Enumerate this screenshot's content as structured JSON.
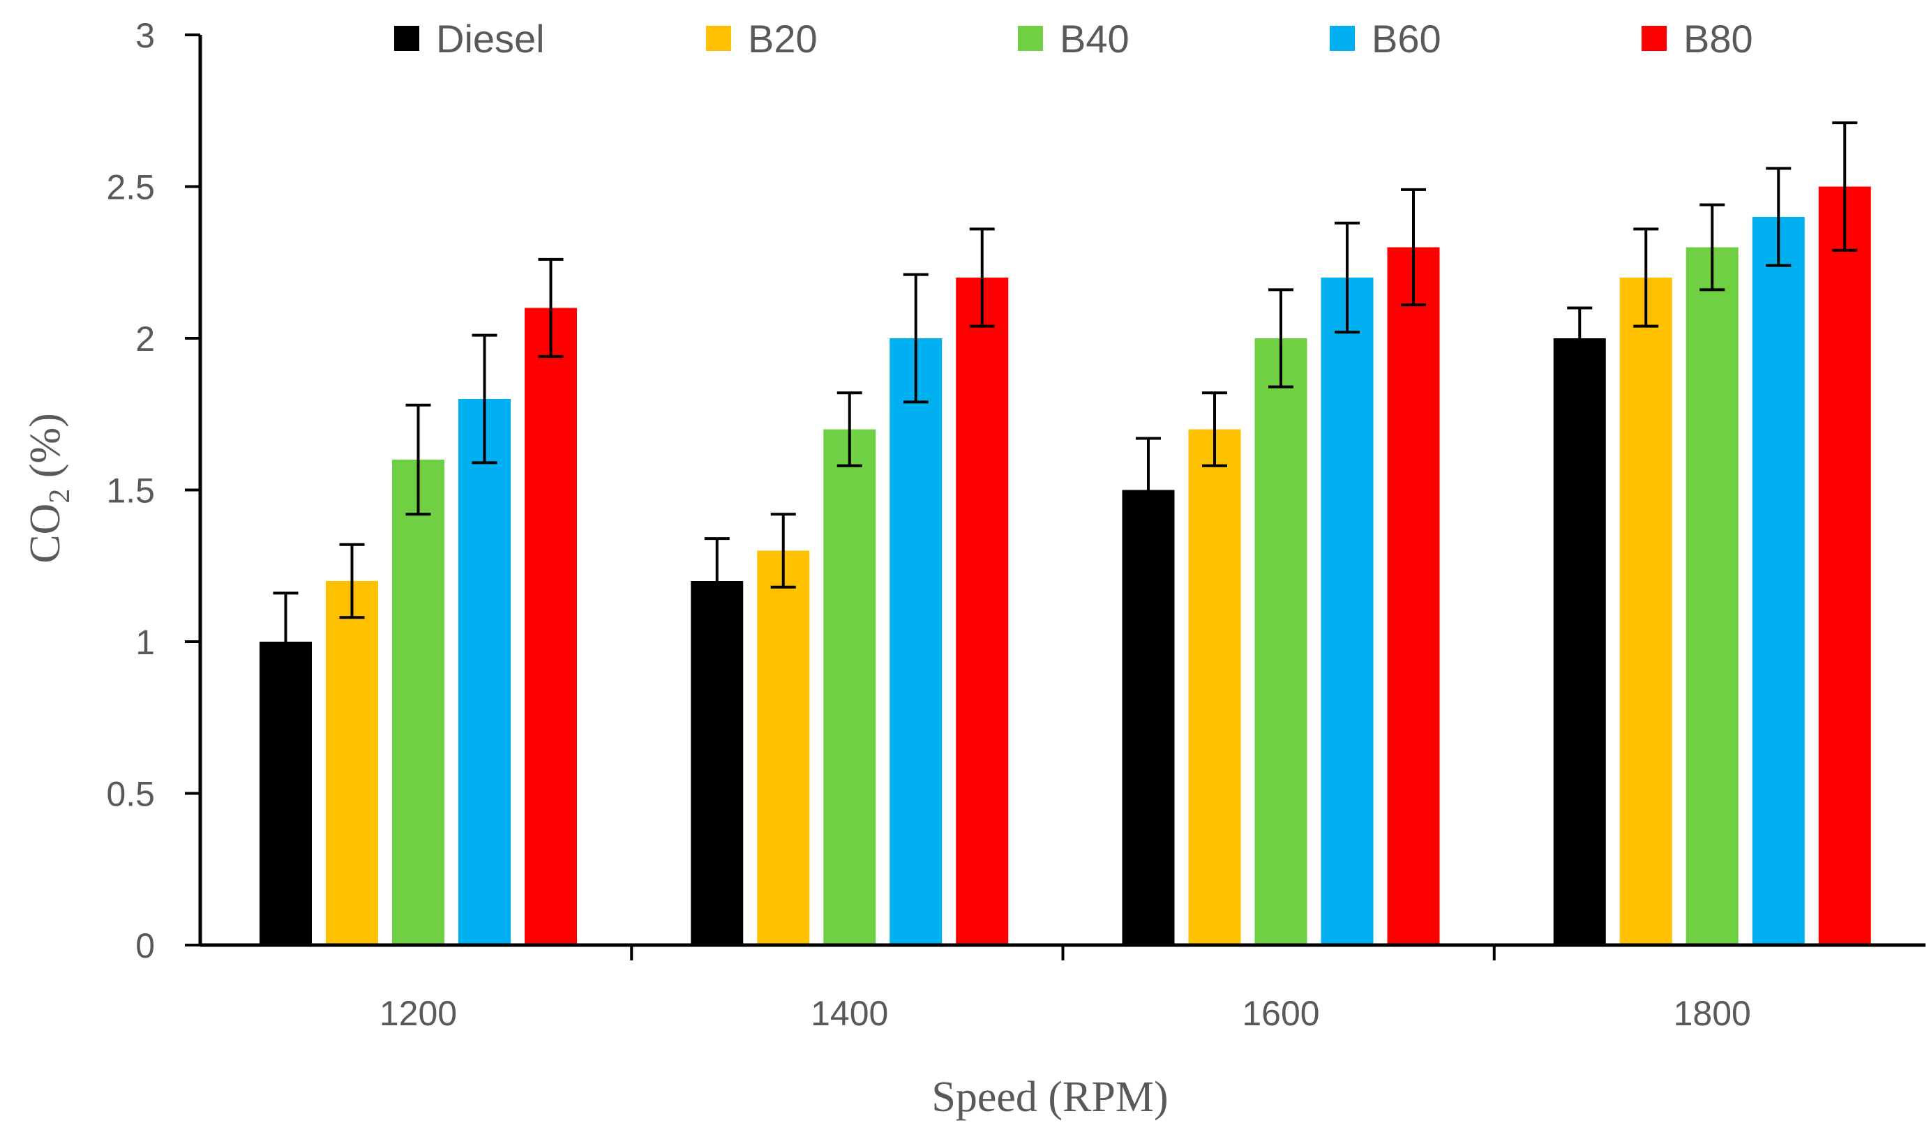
{
  "chart_data": {
    "type": "bar",
    "title": "",
    "xlabel": "Speed (RPM)",
    "ylabel": "CO",
    "ylabel_subscript": "2",
    "ylabel_suffix": " (%)",
    "ylim": [
      0,
      3
    ],
    "yticks": [
      "0",
      "0.5",
      "1",
      "1.5",
      "2",
      "2.5",
      "3"
    ],
    "yticks_values": [
      0,
      0.5,
      1,
      1.5,
      2,
      2.5,
      3
    ],
    "categories": [
      "1200",
      "1400",
      "1600",
      "1800"
    ],
    "grid": false,
    "legend_position": "top",
    "series": [
      {
        "name": "Diesel",
        "color": "#000000",
        "values": [
          1.0,
          1.2,
          1.5,
          2.0
        ],
        "errors": [
          0.16,
          0.14,
          0.17,
          0.1
        ]
      },
      {
        "name": "B20",
        "color": "#FFC000",
        "values": [
          1.2,
          1.3,
          1.7,
          2.2
        ],
        "errors": [
          0.12,
          0.12,
          0.12,
          0.16
        ]
      },
      {
        "name": "B40",
        "color": "#70D044",
        "values": [
          1.6,
          1.7,
          2.0,
          2.3
        ],
        "errors": [
          0.18,
          0.12,
          0.16,
          0.14
        ]
      },
      {
        "name": "B60",
        "color": "#00B0F0",
        "values": [
          1.8,
          2.0,
          2.2,
          2.4
        ],
        "errors": [
          0.21,
          0.21,
          0.18,
          0.16
        ]
      },
      {
        "name": "B80",
        "color": "#FF0000",
        "values": [
          2.1,
          2.2,
          2.3,
          2.5
        ],
        "errors": [
          0.16,
          0.16,
          0.19,
          0.21
        ]
      }
    ]
  }
}
